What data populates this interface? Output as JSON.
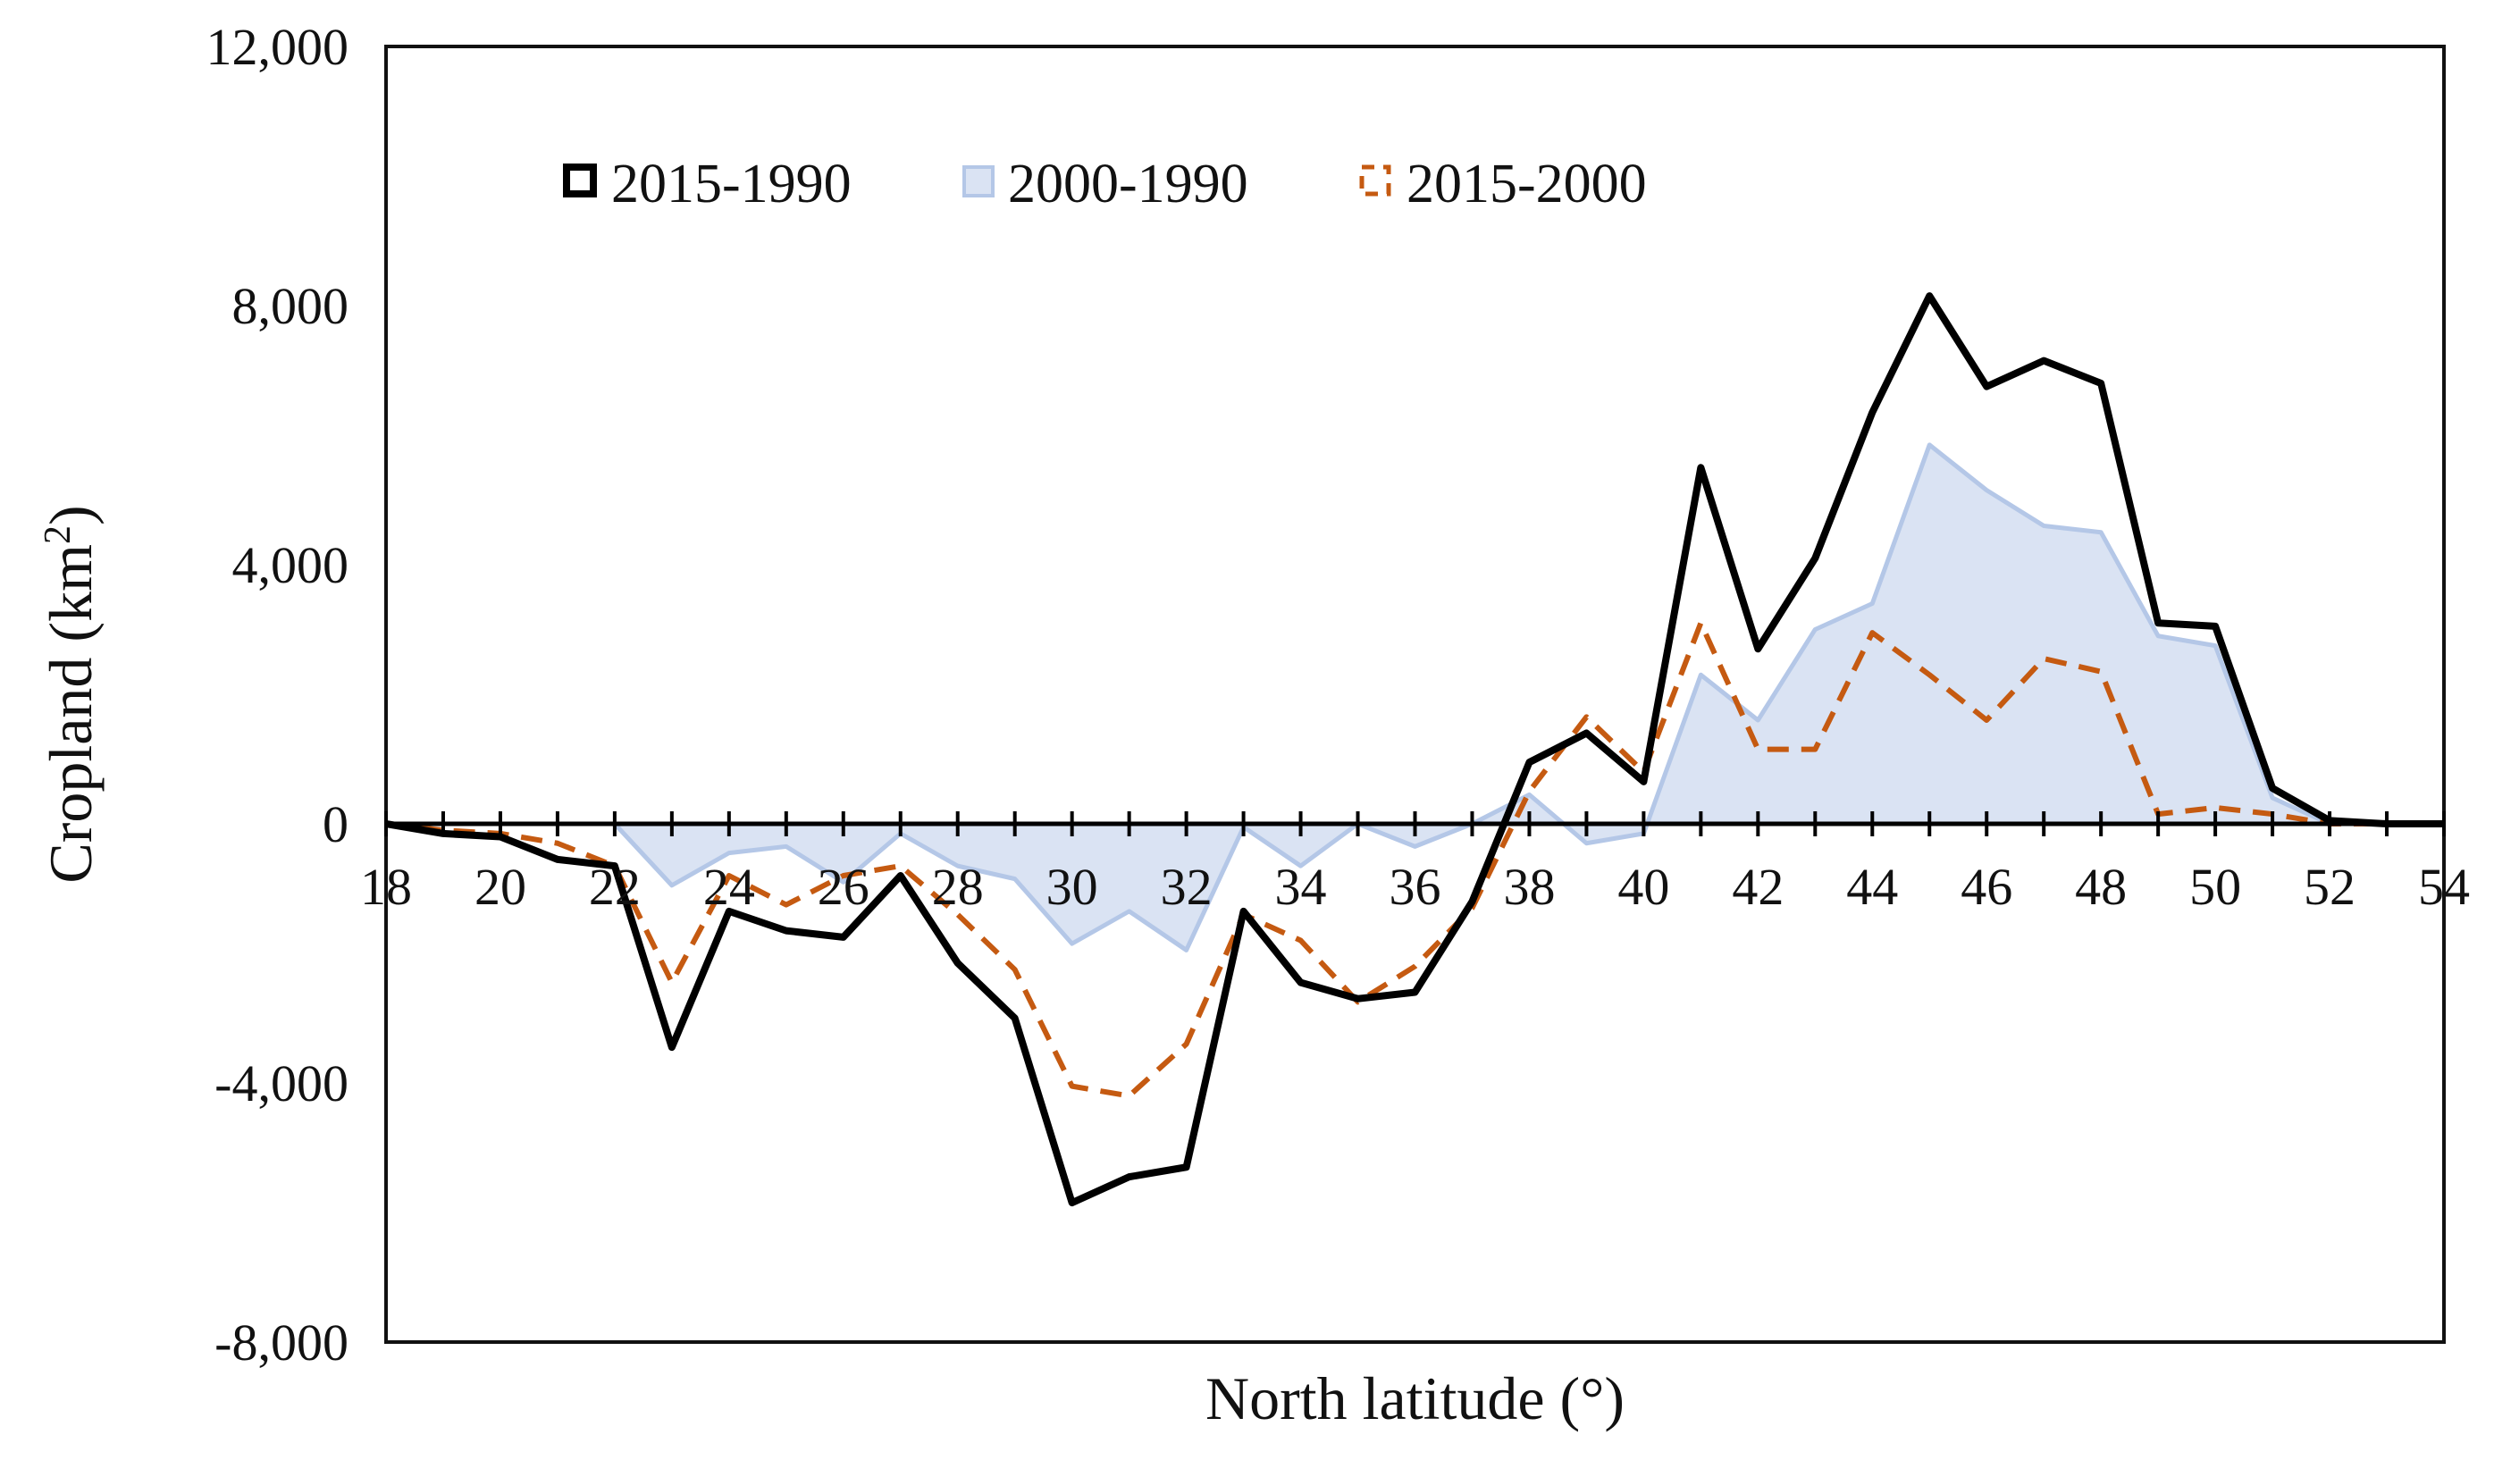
{
  "chart_data": {
    "type": "area",
    "xlabel": "North latitude (°)",
    "ylabel": "Cropland (km²)",
    "ylabel_text": "Cropland (km",
    "ylabel_sup": "2",
    "ylabel_close": ")",
    "xlim": [
      18,
      54
    ],
    "ylim": [
      -8000,
      12000
    ],
    "x_ticks": [
      18,
      20,
      22,
      24,
      26,
      28,
      30,
      32,
      34,
      36,
      38,
      40,
      42,
      44,
      46,
      48,
      50,
      52,
      54
    ],
    "x_tick_labels": [
      "18",
      "20",
      "22",
      "24",
      "26",
      "28",
      "30",
      "32",
      "34",
      "36",
      "38",
      "40",
      "42",
      "44",
      "46",
      "48",
      "50",
      "52",
      "54"
    ],
    "y_ticks": [
      -8000,
      -4000,
      0,
      4000,
      8000,
      12000
    ],
    "y_tick_labels": [
      "-8,000",
      "-4,000",
      "0",
      "4,000",
      "8,000",
      "12,000"
    ],
    "legend_position": "top-left",
    "x": [
      18,
      19,
      20,
      21,
      22,
      23,
      24,
      25,
      26,
      27,
      28,
      29,
      30,
      31,
      32,
      33,
      34,
      35,
      36,
      37,
      38,
      39,
      40,
      41,
      42,
      43,
      44,
      45,
      46,
      47,
      48,
      49,
      50,
      51,
      52,
      53,
      54
    ],
    "series": [
      {
        "name": "2015-1990",
        "style": "line",
        "color": "#000000",
        "values": [
          0,
          -150,
          -200,
          -550,
          -650,
          -3450,
          -1350,
          -1650,
          -1750,
          -800,
          -2150,
          -3000,
          -5850,
          -5450,
          -5300,
          -1350,
          -2450,
          -2700,
          -2600,
          -1200,
          950,
          1400,
          650,
          5500,
          2700,
          4100,
          6350,
          8150,
          6750,
          7150,
          6800,
          3100,
          3050,
          550,
          50,
          0,
          0
        ]
      },
      {
        "name": "2000-1990",
        "style": "area",
        "color": "#b4c7e7",
        "fill": "#dae3f3",
        "values": [
          0,
          0,
          0,
          0,
          0,
          -950,
          -450,
          -350,
          -900,
          -150,
          -650,
          -850,
          -1850,
          -1350,
          -1950,
          -50,
          -650,
          0,
          -350,
          0,
          450,
          -300,
          -150,
          2300,
          1600,
          3000,
          3400,
          5850,
          5150,
          4600,
          4500,
          2900,
          2750,
          400,
          0,
          0,
          0
        ]
      },
      {
        "name": "2015-2000",
        "style": "dashed",
        "color": "#c55a11",
        "values": [
          0,
          -100,
          -150,
          -300,
          -650,
          -2450,
          -800,
          -1250,
          -800,
          -650,
          -1400,
          -2250,
          -4050,
          -4200,
          -3400,
          -1400,
          -1800,
          -2750,
          -2200,
          -1300,
          500,
          1650,
          800,
          3100,
          1150,
          1150,
          2950,
          2300,
          1600,
          2550,
          2350,
          150,
          250,
          150,
          0,
          0,
          0
        ]
      }
    ]
  }
}
